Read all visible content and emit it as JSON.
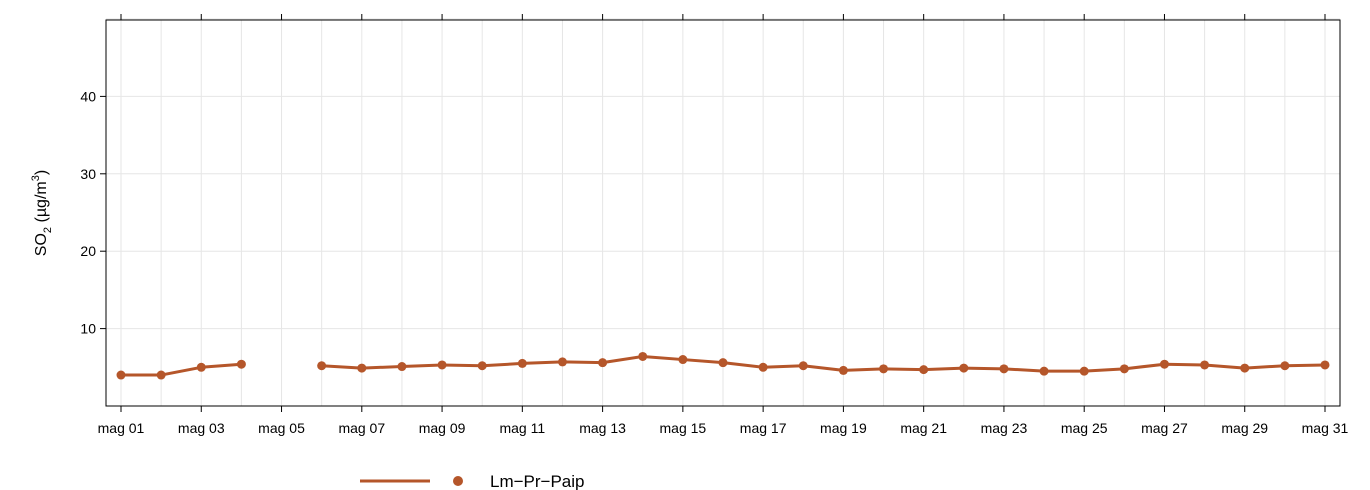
{
  "chart_data": {
    "type": "line",
    "ylabel": {
      "main": "SO",
      "sub": "2",
      "unit_open": " (µg/m",
      "sup": "3",
      "unit_close": ")"
    },
    "xlim": [
      1,
      31
    ],
    "ylim": [
      0,
      50
    ],
    "yticks": [
      10,
      20,
      30,
      40
    ],
    "xtick_labels": [
      "mag 01",
      "mag 03",
      "mag 05",
      "mag 07",
      "mag 09",
      "mag 11",
      "mag 13",
      "mag 15",
      "mag 17",
      "mag 19",
      "mag 21",
      "mag 23",
      "mag 25",
      "mag 27",
      "mag 29",
      "mag 31"
    ],
    "grid": true,
    "legend_position": "bottom",
    "series": [
      {
        "name": "Lm−Pr−Paip",
        "color": "#b5562a",
        "x": [
          1,
          2,
          3,
          4,
          5,
          6,
          7,
          8,
          9,
          10,
          11,
          12,
          13,
          14,
          15,
          16,
          17,
          18,
          19,
          20,
          21,
          22,
          23,
          24,
          25,
          26,
          27,
          28,
          29,
          30,
          31
        ],
        "values": [
          4.0,
          4.0,
          5.0,
          5.4,
          null,
          5.2,
          4.9,
          5.1,
          5.3,
          5.2,
          5.5,
          5.7,
          5.6,
          6.4,
          6.0,
          5.6,
          5.0,
          5.2,
          4.6,
          4.8,
          4.7,
          4.9,
          4.8,
          4.5,
          4.5,
          4.8,
          5.4,
          5.3,
          4.9,
          5.2,
          5.3
        ]
      }
    ]
  }
}
